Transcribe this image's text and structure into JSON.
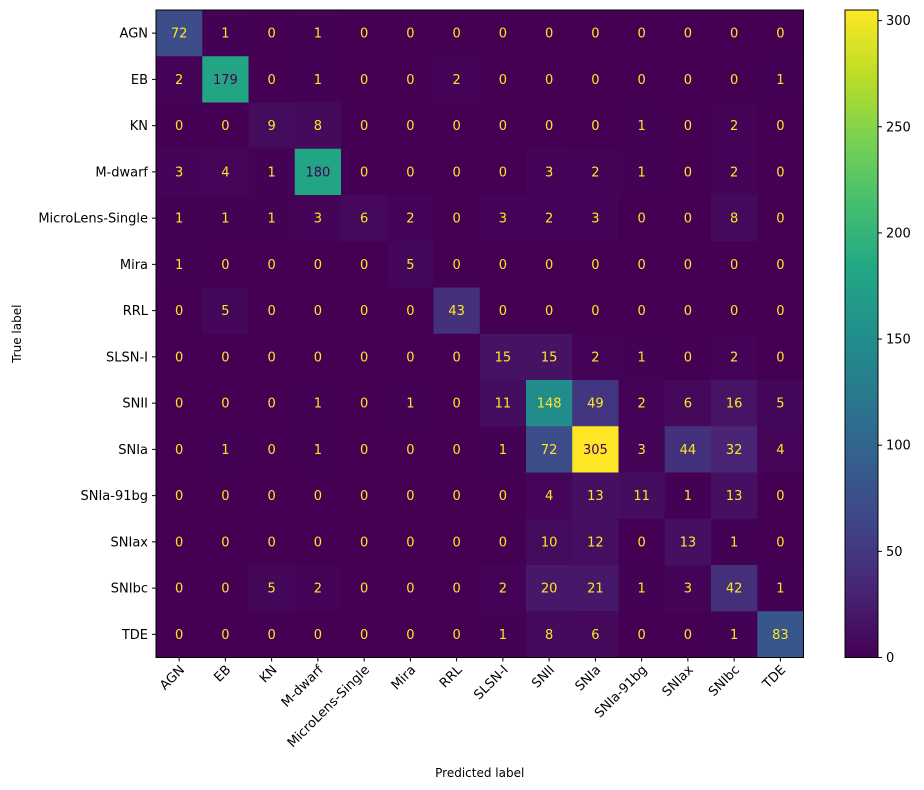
{
  "chart_data": {
    "type": "heatmap",
    "xlabel": "Predicted label",
    "ylabel": "True label",
    "x_categories": [
      "AGN",
      "EB",
      "KN",
      "M-dwarf",
      "MicroLens-Single",
      "Mira",
      "RRL",
      "SLSN-I",
      "SNII",
      "SNIa",
      "SNIa-91bg",
      "SNIax",
      "SNIbc",
      "TDE"
    ],
    "y_categories": [
      "AGN",
      "EB",
      "KN",
      "M-dwarf",
      "MicroLens-Single",
      "Mira",
      "RRL",
      "SLSN-I",
      "SNII",
      "SNIa",
      "SNIa-91bg",
      "SNIax",
      "SNIbc",
      "TDE"
    ],
    "matrix": [
      [
        72,
        1,
        0,
        1,
        0,
        0,
        0,
        0,
        0,
        0,
        0,
        0,
        0,
        0
      ],
      [
        2,
        179,
        0,
        1,
        0,
        0,
        2,
        0,
        0,
        0,
        0,
        0,
        0,
        1
      ],
      [
        0,
        0,
        9,
        8,
        0,
        0,
        0,
        0,
        0,
        0,
        1,
        0,
        2,
        0
      ],
      [
        3,
        4,
        1,
        180,
        0,
        0,
        0,
        0,
        3,
        2,
        1,
        0,
        2,
        0
      ],
      [
        1,
        1,
        1,
        3,
        6,
        2,
        0,
        3,
        2,
        3,
        0,
        0,
        8,
        0
      ],
      [
        1,
        0,
        0,
        0,
        0,
        5,
        0,
        0,
        0,
        0,
        0,
        0,
        0,
        0
      ],
      [
        0,
        5,
        0,
        0,
        0,
        0,
        43,
        0,
        0,
        0,
        0,
        0,
        0,
        0
      ],
      [
        0,
        0,
        0,
        0,
        0,
        0,
        0,
        15,
        15,
        2,
        1,
        0,
        2,
        0
      ],
      [
        0,
        0,
        0,
        1,
        0,
        1,
        0,
        11,
        148,
        49,
        2,
        6,
        16,
        5
      ],
      [
        0,
        1,
        0,
        1,
        0,
        0,
        0,
        1,
        72,
        305,
        3,
        44,
        32,
        4
      ],
      [
        0,
        0,
        0,
        0,
        0,
        0,
        0,
        0,
        4,
        13,
        11,
        1,
        13,
        0
      ],
      [
        0,
        0,
        0,
        0,
        0,
        0,
        0,
        0,
        10,
        12,
        0,
        13,
        1,
        0
      ],
      [
        0,
        0,
        5,
        2,
        0,
        0,
        0,
        2,
        20,
        21,
        1,
        3,
        42,
        1
      ],
      [
        0,
        0,
        0,
        0,
        0,
        0,
        0,
        1,
        8,
        6,
        0,
        0,
        1,
        83
      ]
    ],
    "colormap": "viridis",
    "value_range": [
      0,
      305
    ],
    "colorbar_ticks": [
      0,
      50,
      100,
      150,
      200,
      250,
      300
    ],
    "colorbar": "right",
    "grid": false
  }
}
